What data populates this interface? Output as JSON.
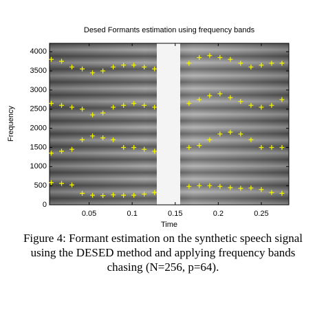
{
  "chart_data": {
    "type": "scatter",
    "title": "Desed Formants estimation using frequency bands",
    "xlabel": "Time",
    "ylabel": "Frequency",
    "xlim": [
      0.004,
      0.282
    ],
    "xticks": [
      0.05,
      0.1,
      0.15,
      0.2,
      0.25
    ],
    "ylim": [
      0,
      4220
    ],
    "yticks": [
      0,
      500,
      1000,
      1500,
      2000,
      2500,
      3000,
      3500,
      4000
    ],
    "x": [
      0.006,
      0.018,
      0.03,
      0.042,
      0.054,
      0.066,
      0.078,
      0.09,
      0.102,
      0.114,
      0.126,
      0.166,
      0.178,
      0.19,
      0.202,
      0.214,
      0.226,
      0.238,
      0.25,
      0.262,
      0.274
    ],
    "series": [
      {
        "color": "#f2f200",
        "values": [
          580,
          560,
          520,
          300,
          250,
          240,
          260,
          250,
          250,
          280,
          320,
          480,
          500,
          500,
          480,
          450,
          430,
          440,
          400,
          320,
          300
        ]
      },
      {
        "color": "#f2f200",
        "values": [
          1350,
          1400,
          1450,
          1700,
          1800,
          1750,
          1700,
          1500,
          1500,
          1450,
          1400,
          1500,
          1550,
          1700,
          1850,
          1900,
          1850,
          1700,
          1500,
          1500,
          1500
        ]
      },
      {
        "color": "#f2f200",
        "values": [
          2650,
          2600,
          2550,
          2500,
          2350,
          2400,
          2550,
          2600,
          2650,
          2600,
          2550,
          2650,
          2750,
          2850,
          2900,
          2800,
          2700,
          2600,
          2550,
          2600,
          2750
        ]
      },
      {
        "color": "#f2f200",
        "values": [
          3800,
          3750,
          3600,
          3550,
          3450,
          3500,
          3600,
          3650,
          3650,
          3600,
          3550,
          3700,
          3850,
          3900,
          3850,
          3800,
          3700,
          3600,
          3650,
          3700,
          3700
        ]
      }
    ]
  },
  "caption": [
    "Figure 4:  Formant estimation on the synthetic speech signal",
    "using the DESED method and applying frequency bands",
    "chasing (N=256, p=64)."
  ]
}
